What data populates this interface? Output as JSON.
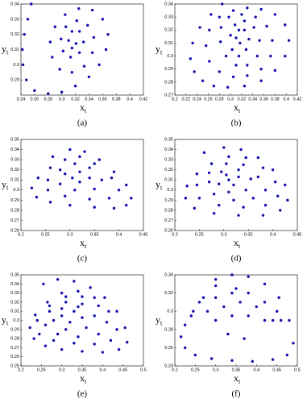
{
  "chart_data": [
    {
      "type": "scatter",
      "title": "(a)",
      "xlabel": "x",
      "xlabel_sub": "t",
      "ylabel": "y",
      "ylabel_sub": "t",
      "color": "#1010b0",
      "xlim": [
        0.24,
        0.42
      ],
      "xticks": [
        0.24,
        0.26,
        0.28,
        0.3,
        0.32,
        0.34,
        0.36,
        0.38,
        0.4,
        0.42
      ],
      "ylim": [
        0.28,
        0.34
      ],
      "yticks": [
        0.29,
        0.3,
        0.31,
        0.32,
        0.33,
        0.34
      ],
      "x": [
        0.255,
        0.25,
        0.245,
        0.242,
        0.243,
        0.248,
        0.26,
        0.28,
        0.3,
        0.32,
        0.34,
        0.355,
        0.365,
        0.368,
        0.36,
        0.345,
        0.325,
        0.305,
        0.29,
        0.283,
        0.286,
        0.297,
        0.315,
        0.333,
        0.345,
        0.347,
        0.338,
        0.322,
        0.306,
        0.299,
        0.302,
        0.313,
        0.326,
        0.332,
        0.326,
        0.315,
        0.31,
        0.315,
        0.321
      ],
      "y": [
        0.34,
        0.33,
        0.32,
        0.31,
        0.3,
        0.29,
        0.283,
        0.281,
        0.282,
        0.286,
        0.292,
        0.3,
        0.31,
        0.32,
        0.33,
        0.336,
        0.337,
        0.333,
        0.325,
        0.315,
        0.305,
        0.297,
        0.295,
        0.299,
        0.308,
        0.318,
        0.326,
        0.329,
        0.325,
        0.317,
        0.309,
        0.305,
        0.308,
        0.315,
        0.322,
        0.322,
        0.316,
        0.311,
        0.314
      ]
    },
    {
      "type": "scatter",
      "title": "(b)",
      "xlabel": "x",
      "xlabel_sub": "t",
      "ylabel": "y",
      "ylabel_sub": "t",
      "color": "#1010b0",
      "xlim": [
        0.2,
        0.42
      ],
      "xticks": [
        0.2,
        0.22,
        0.24,
        0.26,
        0.28,
        0.3,
        0.32,
        0.34,
        0.36,
        0.38,
        0.4,
        0.42
      ],
      "ylim": [
        0.27,
        0.34
      ],
      "yticks": [
        0.27,
        0.28,
        0.29,
        0.3,
        0.31,
        0.32,
        0.33,
        0.34
      ],
      "x": [
        0.285,
        0.265,
        0.245,
        0.232,
        0.228,
        0.235,
        0.25,
        0.27,
        0.295,
        0.325,
        0.355,
        0.38,
        0.398,
        0.405,
        0.398,
        0.38,
        0.355,
        0.33,
        0.305,
        0.28,
        0.262,
        0.256,
        0.262,
        0.28,
        0.305,
        0.33,
        0.355,
        0.372,
        0.375,
        0.365,
        0.345,
        0.32,
        0.297,
        0.283,
        0.282,
        0.292,
        0.31,
        0.33,
        0.348,
        0.352,
        0.342,
        0.325,
        0.308,
        0.3,
        0.303,
        0.315,
        0.328,
        0.333,
        0.325,
        0.315,
        0.31,
        0.317
      ],
      "y": [
        0.34,
        0.332,
        0.322,
        0.31,
        0.298,
        0.288,
        0.281,
        0.277,
        0.276,
        0.277,
        0.281,
        0.289,
        0.3,
        0.312,
        0.324,
        0.332,
        0.336,
        0.337,
        0.335,
        0.33,
        0.32,
        0.308,
        0.296,
        0.288,
        0.284,
        0.285,
        0.29,
        0.3,
        0.312,
        0.323,
        0.33,
        0.332,
        0.33,
        0.322,
        0.311,
        0.3,
        0.293,
        0.293,
        0.3,
        0.312,
        0.322,
        0.327,
        0.324,
        0.316,
        0.305,
        0.3,
        0.305,
        0.313,
        0.32,
        0.32,
        0.314,
        0.31
      ]
    },
    {
      "type": "scatter",
      "title": "(c)",
      "xlabel": "x",
      "xlabel_sub": "t",
      "ylabel": "y",
      "ylabel_sub": "t",
      "color": "#1010b0",
      "xlim": [
        0.2,
        0.45
      ],
      "xticks": [
        0.2,
        0.25,
        0.3,
        0.35,
        0.4,
        0.45
      ],
      "ylim": [
        0.26,
        0.35
      ],
      "yticks": [
        0.26,
        0.27,
        0.28,
        0.29,
        0.3,
        0.31,
        0.32,
        0.33,
        0.34,
        0.35
      ],
      "x": [
        0.265,
        0.3,
        0.33,
        0.36,
        0.39,
        0.415,
        0.425,
        0.415,
        0.39,
        0.35,
        0.3,
        0.26,
        0.232,
        0.222,
        0.235,
        0.26,
        0.29,
        0.32,
        0.35,
        0.385,
        0.4,
        0.38,
        0.34,
        0.29,
        0.255,
        0.255,
        0.28,
        0.31,
        0.34,
        0.365,
        0.35,
        0.31,
        0.28,
        0.29,
        0.32,
        0.34,
        0.32,
        0.305
      ],
      "y": [
        0.333,
        0.34,
        0.338,
        0.33,
        0.318,
        0.305,
        0.292,
        0.285,
        0.282,
        0.283,
        0.285,
        0.288,
        0.293,
        0.302,
        0.312,
        0.322,
        0.33,
        0.333,
        0.326,
        0.312,
        0.3,
        0.292,
        0.291,
        0.294,
        0.3,
        0.31,
        0.32,
        0.326,
        0.322,
        0.31,
        0.301,
        0.3,
        0.306,
        0.316,
        0.318,
        0.312,
        0.308,
        0.312
      ]
    },
    {
      "type": "scatter",
      "title": "(d)",
      "xlabel": "x",
      "xlabel_sub": "t",
      "ylabel": "y",
      "ylabel_sub": "t",
      "color": "#1010b0",
      "xlim": [
        0.2,
        0.45
      ],
      "xticks": [
        0.2,
        0.25,
        0.3,
        0.35,
        0.4,
        0.45
      ],
      "ylim": [
        0.26,
        0.35
      ],
      "yticks": [
        0.26,
        0.27,
        0.28,
        0.29,
        0.3,
        0.31,
        0.32,
        0.33,
        0.34,
        0.35
      ],
      "x": [
        0.26,
        0.3,
        0.335,
        0.37,
        0.4,
        0.425,
        0.43,
        0.415,
        0.38,
        0.33,
        0.28,
        0.24,
        0.222,
        0.225,
        0.245,
        0.275,
        0.31,
        0.345,
        0.38,
        0.405,
        0.41,
        0.385,
        0.34,
        0.29,
        0.25,
        0.245,
        0.27,
        0.305,
        0.34,
        0.37,
        0.385,
        0.36,
        0.32,
        0.28,
        0.27,
        0.295,
        0.33,
        0.355,
        0.345,
        0.31,
        0.29,
        0.305,
        0.33,
        0.32,
        0.31
      ],
      "y": [
        0.337,
        0.342,
        0.34,
        0.332,
        0.32,
        0.305,
        0.29,
        0.28,
        0.275,
        0.275,
        0.277,
        0.282,
        0.292,
        0.304,
        0.316,
        0.326,
        0.333,
        0.332,
        0.322,
        0.308,
        0.294,
        0.285,
        0.283,
        0.285,
        0.292,
        0.305,
        0.317,
        0.326,
        0.325,
        0.313,
        0.3,
        0.292,
        0.29,
        0.296,
        0.308,
        0.318,
        0.32,
        0.311,
        0.3,
        0.298,
        0.306,
        0.315,
        0.313,
        0.305,
        0.31
      ]
    },
    {
      "type": "scatter",
      "title": "(e)",
      "xlabel": "x",
      "xlabel_sub": "t",
      "ylabel": "y",
      "ylabel_sub": "t",
      "color": "#1010b0",
      "xlim": [
        0.2,
        0.5
      ],
      "xticks": [
        0.2,
        0.25,
        0.3,
        0.35,
        0.4,
        0.45,
        0.5
      ],
      "ylim": [
        0.25,
        0.35
      ],
      "yticks": [
        0.25,
        0.26,
        0.27,
        0.28,
        0.29,
        0.3,
        0.31,
        0.32,
        0.33,
        0.34,
        0.35
      ],
      "x": [
        0.255,
        0.29,
        0.33,
        0.37,
        0.405,
        0.435,
        0.455,
        0.46,
        0.44,
        0.4,
        0.35,
        0.3,
        0.26,
        0.232,
        0.222,
        0.235,
        0.265,
        0.3,
        0.34,
        0.38,
        0.415,
        0.435,
        0.42,
        0.38,
        0.33,
        0.28,
        0.245,
        0.24,
        0.27,
        0.31,
        0.35,
        0.39,
        0.41,
        0.39,
        0.34,
        0.29,
        0.26,
        0.27,
        0.31,
        0.35,
        0.38,
        0.36,
        0.31,
        0.28,
        0.3,
        0.34,
        0.35,
        0.32,
        0.3,
        0.33
      ],
      "y": [
        0.34,
        0.345,
        0.343,
        0.336,
        0.325,
        0.31,
        0.292,
        0.276,
        0.268,
        0.265,
        0.266,
        0.268,
        0.272,
        0.28,
        0.292,
        0.306,
        0.32,
        0.33,
        0.332,
        0.325,
        0.31,
        0.29,
        0.278,
        0.274,
        0.275,
        0.278,
        0.285,
        0.3,
        0.316,
        0.326,
        0.326,
        0.316,
        0.298,
        0.285,
        0.282,
        0.285,
        0.295,
        0.31,
        0.32,
        0.318,
        0.305,
        0.292,
        0.29,
        0.3,
        0.313,
        0.315,
        0.303,
        0.298,
        0.305,
        0.31
      ]
    },
    {
      "type": "scatter",
      "title": "(f)",
      "xlabel": "x",
      "xlabel_sub": "t",
      "ylabel": "y",
      "ylabel_sub": "t",
      "color": "#1010b0",
      "xlim": [
        0.2,
        0.5
      ],
      "xticks": [
        0.2,
        0.25,
        0.3,
        0.35,
        0.4,
        0.45,
        0.5
      ],
      "ylim": [
        0.24,
        0.34
      ],
      "yticks": [
        0.24,
        0.26,
        0.28,
        0.3,
        0.32,
        0.34
      ],
      "x": [
        0.3,
        0.34,
        0.38,
        0.42,
        0.455,
        0.48,
        0.49,
        0.475,
        0.44,
        0.39,
        0.34,
        0.29,
        0.25,
        0.225,
        0.215,
        0.225,
        0.245,
        0.27,
        0.3,
        0.26,
        0.3,
        0.34,
        0.38,
        0.42,
        0.45,
        0.28,
        0.32,
        0.36,
        0.4,
        0.44,
        0.3,
        0.34,
        0.38,
        0.42,
        0.24,
        0.46,
        0.35,
        0.33,
        0.37
      ],
      "y": [
        0.335,
        0.34,
        0.338,
        0.33,
        0.315,
        0.29,
        0.265,
        0.252,
        0.247,
        0.245,
        0.246,
        0.248,
        0.252,
        0.26,
        0.272,
        0.285,
        0.3,
        0.315,
        0.328,
        0.31,
        0.315,
        0.32,
        0.32,
        0.31,
        0.3,
        0.3,
        0.305,
        0.31,
        0.305,
        0.29,
        0.29,
        0.295,
        0.295,
        0.29,
        0.295,
        0.29,
        0.325,
        0.275,
        0.27
      ]
    }
  ]
}
